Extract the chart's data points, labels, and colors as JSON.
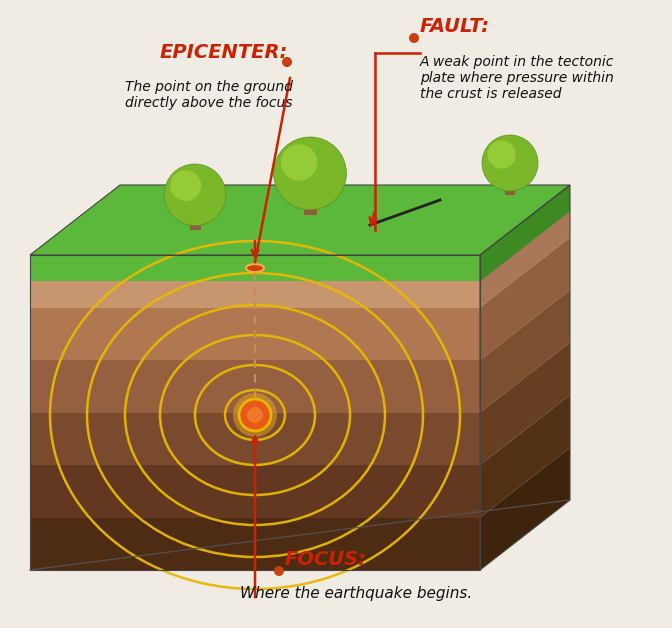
{
  "bg_color": "#f0ece4",
  "epicenter_label": "EPICENTER:",
  "epicenter_desc": "The point on the ground\ndirectly above the focus",
  "fault_label": "FAULT:",
  "fault_desc": "A weak point in the tectonic\nplate where pressure within\nthe crust is released",
  "focus_label": "FOCUS:",
  "focus_desc": "Where the earthquake begins.",
  "label_color": "#cc2200",
  "desc_color": "#111111",
  "grass_top_color": "#5cb83a",
  "grass_side_color": "#3d8a22",
  "grass_dark_color": "#2e6e18",
  "sky_color": "#b8ddf0",
  "soil_layers_front": [
    "#c8966e",
    "#b07850",
    "#956040",
    "#7a4a2e",
    "#623820",
    "#4e2c14"
  ],
  "soil_layers_side": [
    "#a87858",
    "#906040",
    "#7a5030",
    "#663e22",
    "#523014",
    "#3e240c"
  ],
  "wave_color": "#e8b800",
  "focus_color_outer": "#e85818",
  "focus_color_inner": "#f07828",
  "focus_highlight": "#f8c878",
  "epicenter_color": "#c84010",
  "arrow_color": "#cc2200",
  "line_color": "#cc4422",
  "fault_line_color": "#222222",
  "tree_trunk": "#8B5E3C",
  "tree_foliage": "#7ab82a",
  "tree_highlight": "#a8d840"
}
